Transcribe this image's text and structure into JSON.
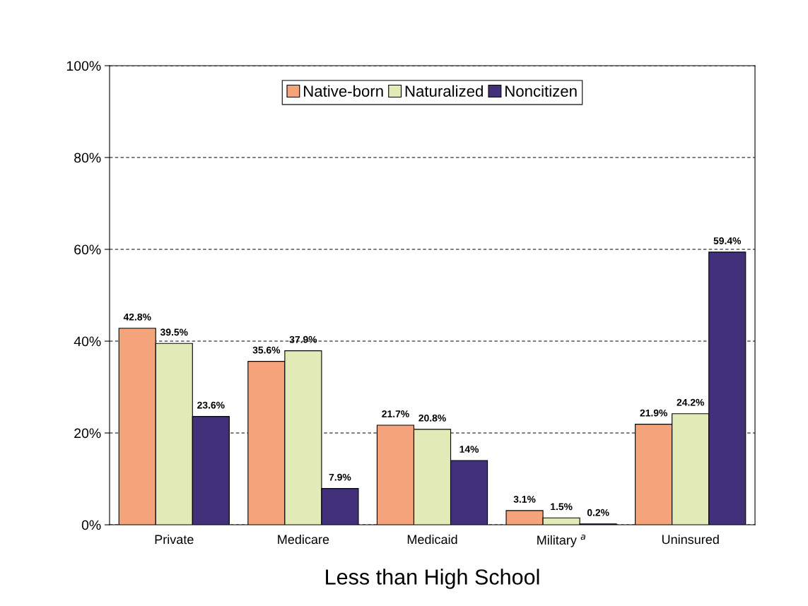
{
  "chart_data": {
    "type": "bar",
    "xlabel": "Less than High School",
    "categories": [
      "Private",
      "Medicare",
      "Medicaid",
      "Military $^{a}$",
      "Uninsured"
    ],
    "series": [
      {
        "name": "Native-born",
        "color": "#f5a37a",
        "values": [
          42.8,
          35.6,
          21.7,
          3.1,
          21.9
        ],
        "value_labels": [
          "42.8%",
          "35.6%",
          "21.7%",
          "3.1%",
          "21.9%"
        ]
      },
      {
        "name": "Naturalized",
        "color": "#e2ebb8",
        "values": [
          39.5,
          37.9,
          20.8,
          1.5,
          24.2
        ],
        "value_labels": [
          "39.5%",
          "37.9%",
          "20.8%",
          "1.5%",
          "24.2%"
        ]
      },
      {
        "name": "Noncitizen",
        "color": "#42307a",
        "values": [
          23.6,
          7.9,
          14,
          0.2,
          59.4
        ],
        "value_labels": [
          "23.6%",
          "7.9%",
          "14%",
          "0.2%",
          "59.4%"
        ]
      }
    ],
    "ylim": [
      0,
      100
    ],
    "yticks": [
      {
        "value": 0,
        "label": "0%"
      },
      {
        "value": 20,
        "label": "20%"
      },
      {
        "value": 40,
        "label": "40%"
      },
      {
        "value": 60,
        "label": "60%"
      },
      {
        "value": 80,
        "label": "80%"
      },
      {
        "value": 100,
        "label": "100%"
      }
    ],
    "grid": "y",
    "legend": "top"
  }
}
